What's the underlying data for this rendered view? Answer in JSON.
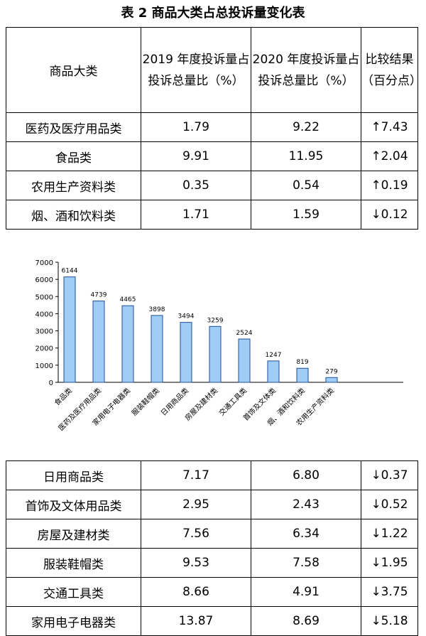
{
  "title": "表 2  商品大类占总投诉量变化表",
  "header": {
    "col1": "商品大类",
    "col2": "2019 年度投诉量占投诉总量比（%）",
    "col3": "2020 年度投诉量占投诉总量比（%）",
    "col4": "比较结果（百分点）"
  },
  "top_rows": [
    {
      "category": "医药及医疗用品类",
      "y2019": "1.79",
      "y2020": "9.22",
      "change": "↑7.43"
    },
    {
      "category": "食品类",
      "y2019": "9.91",
      "y2020": "11.95",
      "change": "↑2.04"
    },
    {
      "category": "农用生产资料类",
      "y2019": "0.35",
      "y2020": "0.54",
      "change": "↑0.19"
    },
    {
      "category": "烟、酒和饮料类",
      "y2019": "1.71",
      "y2020": "1.59",
      "change": "↓0.12"
    }
  ],
  "bottom_rows": [
    {
      "category": "日用商品类",
      "y2019": "7.17",
      "y2020": "6.80",
      "change": "↓0.37"
    },
    {
      "category": "首饰及文体用品类",
      "y2019": "2.95",
      "y2020": "2.43",
      "change": "↓0.52"
    },
    {
      "category": "房屋及建材类",
      "y2019": "7.56",
      "y2020": "6.34",
      "change": "↓1.22"
    },
    {
      "category": "服装鞋帽类",
      "y2019": "9.53",
      "y2020": "7.58",
      "change": "↓1.95"
    },
    {
      "category": "交通工具类",
      "y2019": "8.66",
      "y2020": "4.91",
      "change": "↓3.75"
    },
    {
      "category": "家用电子电器类",
      "y2019": "13.87",
      "y2020": "8.69",
      "change": "↓5.18"
    }
  ],
  "chart_data": {
    "type": "bar",
    "categories": [
      "食品类",
      "医药及医疗用品类",
      "家用电子电器类",
      "服装鞋帽类",
      "日用商品类",
      "房屋及建材类",
      "交通工具类",
      "首饰及文体类",
      "烟、酒和饮料类",
      "农用生产资料类"
    ],
    "values": [
      6144,
      4739,
      4465,
      3898,
      3494,
      3259,
      2524,
      1247,
      819,
      279
    ],
    "ylim": [
      0,
      7000
    ],
    "yticks": [
      0,
      1000,
      2000,
      3000,
      4000,
      5000,
      6000,
      7000
    ],
    "grid": false,
    "bar_color": "#9fcdf6",
    "bar_edge_color": "#1f4e9a"
  }
}
